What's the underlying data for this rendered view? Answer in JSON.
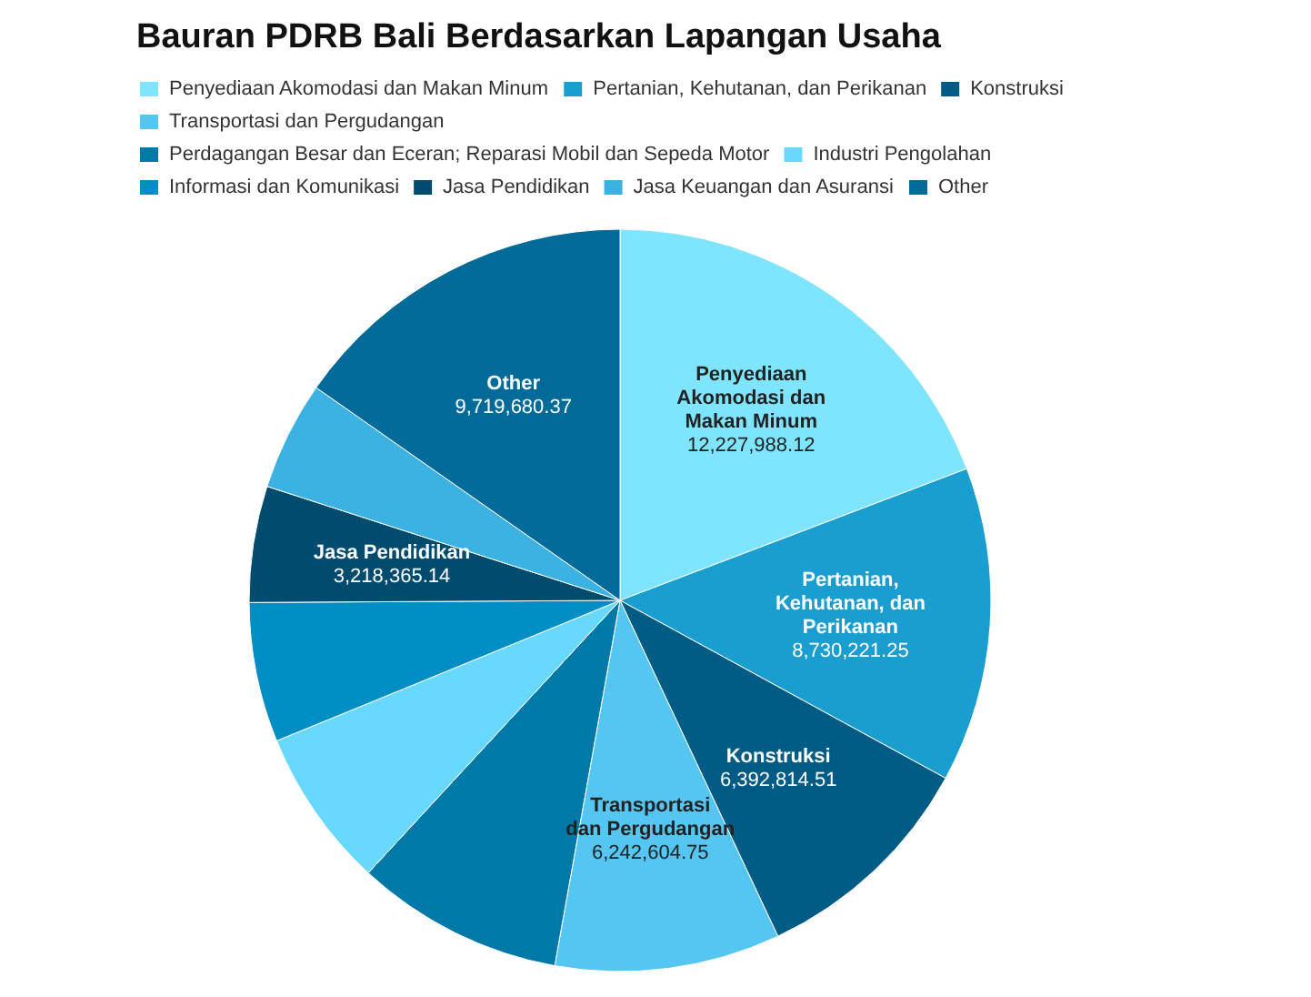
{
  "chart_data": {
    "type": "pie",
    "title": "Bauran PDRB Bali Berdasarkan Lapangan Usaha",
    "categories": [
      "Penyediaan Akomodasi dan Makan Minum",
      "Pertanian, Kehutanan, dan Perikanan",
      "Konstruksi",
      "Transportasi dan Pergudangan",
      "Perdagangan Besar dan Eceran; Reparasi Mobil dan Sepeda Motor",
      "Industri Pengolahan",
      "Informasi dan Komunikasi",
      "Jasa Pendidikan",
      "Jasa Keuangan dan Asuransi",
      "Other"
    ],
    "values": [
      12227988.12,
      8730221.25,
      6392814.51,
      6242604.75,
      5760000,
      4420000,
      3870000,
      3218365.14,
      3020000,
      9719680.37
    ],
    "value_labels": [
      "12,227,988.12",
      "8,730,221.25",
      "6,392,814.51",
      "6,242,604.75",
      null,
      null,
      null,
      "3,218,365.14",
      null,
      "9,719,680.37"
    ],
    "colors": [
      "#7fe5ff",
      "#1a9ed0",
      "#005b85",
      "#55c6f2",
      "#0079a8",
      "#69d8ff",
      "#008ec4",
      "#004b6e",
      "#3bb2e2",
      "#006b99"
    ],
    "legend": "top left"
  }
}
